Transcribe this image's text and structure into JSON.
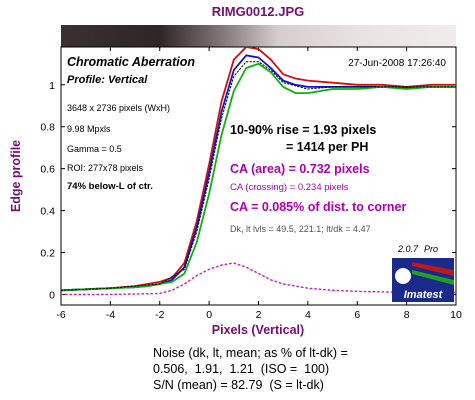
{
  "chart_data": {
    "type": "line",
    "title": "RIMG0012.JPG",
    "subtitle": "Chromatic Aberration",
    "profile": "Profile: Vertical",
    "timestamp": "27-Jun-2008 17:26:40",
    "xlabel": "Pixels (Vertical)",
    "ylabel": "Edge profile",
    "xlim": [
      -6,
      10
    ],
    "ylim": [
      -0.05,
      1.18
    ],
    "xticks": [
      -6,
      -4,
      -2,
      0,
      2,
      4,
      6,
      8,
      10
    ],
    "yticks": [
      0,
      0.2,
      0.4,
      0.6,
      0.8,
      1
    ],
    "grid": false,
    "info": {
      "pixels": "3648 x 2736 pixels (WxH)",
      "mpxls": "9.98 Mpxls",
      "gamma": "Gamma = 0.5",
      "roi": "ROI: 277x78 pixels",
      "location": "74% below-L of ctr."
    },
    "results": {
      "rise": "10-90% rise = 1.93 pixels",
      "per_ph": "= 1414 per PH",
      "ca_area": "CA (area) = 0.732 pixels",
      "ca_crossing": "CA (crossing) = 0.234 pixels",
      "ca_pct": "CA = 0.085% of dist. to corner",
      "levels": "Dk, lt lvls = 49.5, 221.1;   lt/dk = 4.47"
    },
    "version": "2.0.7",
    "version_tag": "Pro",
    "logo_text": "Imatest",
    "series": [
      {
        "name": "red",
        "color": "#d01010",
        "x": [
          -6,
          -5,
          -4,
          -3,
          -2.5,
          -2,
          -1.5,
          -1,
          -0.5,
          0,
          0.5,
          1,
          1.5,
          2,
          2.5,
          3,
          3.5,
          4,
          5,
          6,
          7,
          8,
          9,
          10
        ],
        "y": [
          0.02,
          0.025,
          0.03,
          0.04,
          0.05,
          0.06,
          0.08,
          0.15,
          0.35,
          0.62,
          0.92,
          1.12,
          1.18,
          1.17,
          1.12,
          1.05,
          1.03,
          1.02,
          1.01,
          1.0,
          1.0,
          0.99,
          1.0,
          1.0
        ]
      },
      {
        "name": "blue",
        "color": "#1010d0",
        "x": [
          -6,
          -5,
          -4,
          -3,
          -2.5,
          -2,
          -1.5,
          -1,
          -0.5,
          0,
          0.5,
          1,
          1.5,
          2,
          2.5,
          3,
          3.5,
          4,
          5,
          6,
          7,
          8,
          9,
          10
        ],
        "y": [
          0.02,
          0.025,
          0.03,
          0.035,
          0.04,
          0.05,
          0.07,
          0.13,
          0.32,
          0.58,
          0.87,
          1.07,
          1.14,
          1.13,
          1.08,
          1.02,
          1.0,
          0.99,
          0.99,
          0.99,
          0.99,
          0.985,
          0.99,
          0.99
        ]
      },
      {
        "name": "green",
        "color": "#10b010",
        "x": [
          -6,
          -5,
          -4,
          -3,
          -2.5,
          -2,
          -1.5,
          -1,
          -0.5,
          0,
          0.5,
          1,
          1.5,
          2,
          2.5,
          3,
          3.5,
          4,
          5,
          6,
          7,
          8,
          9,
          10
        ],
        "y": [
          0.02,
          0.025,
          0.03,
          0.035,
          0.04,
          0.05,
          0.06,
          0.1,
          0.25,
          0.48,
          0.76,
          0.97,
          1.08,
          1.1,
          1.06,
          0.99,
          0.96,
          0.96,
          0.98,
          0.98,
          0.99,
          0.98,
          0.99,
          0.99
        ]
      },
      {
        "name": "luminance",
        "color": "#000000",
        "dashed": true,
        "x": [
          -6,
          -4,
          -2,
          -1,
          -0.5,
          0,
          0.5,
          1,
          1.5,
          2,
          2.5,
          3,
          4,
          5,
          6,
          8,
          10
        ],
        "y": [
          0.02,
          0.03,
          0.05,
          0.12,
          0.3,
          0.55,
          0.84,
          1.04,
          1.11,
          1.11,
          1.07,
          1.01,
          0.98,
          0.99,
          0.99,
          0.99,
          0.99
        ]
      },
      {
        "name": "ca-difference",
        "color": "#c020c0",
        "dotted": true,
        "x": [
          -6,
          -4,
          -2,
          -1.5,
          -1,
          -0.5,
          0,
          0.5,
          1,
          1.5,
          2,
          2.5,
          3,
          4,
          5,
          6,
          8,
          10
        ],
        "y": [
          0.0,
          0.0,
          0.005,
          0.02,
          0.05,
          0.09,
          0.12,
          0.14,
          0.15,
          0.13,
          0.1,
          0.07,
          0.05,
          0.03,
          0.02,
          0.015,
          0.01,
          0.01
        ]
      }
    ],
    "noise": {
      "line1": "Noise (dk, lt, mean; as % of lt-dk) =",
      "line2": "0.506,  1.91,  1.21  (ISO =  100)",
      "line3": "S/N (mean) = 82.79  (S = lt-dk)"
    }
  }
}
